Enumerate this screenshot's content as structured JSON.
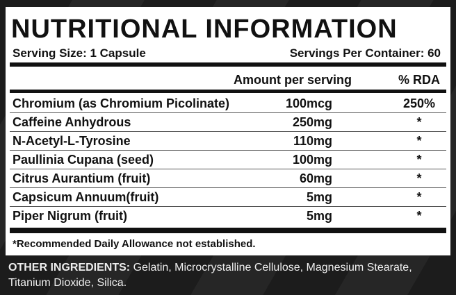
{
  "title": "NUTRITIONAL INFORMATION",
  "serving_size": "Serving Size: 1 Capsule",
  "servings_per_container": "Servings Per Container: 60",
  "table": {
    "headers": [
      "Amount per serving",
      "% RDA"
    ],
    "rows": [
      [
        "Chromium (as Chromium Picolinate)",
        "100mcg",
        "250%"
      ],
      [
        "Caffeine Anhydrous",
        "250mg",
        "*"
      ],
      [
        "N-Acetyl-L-Tyrosine",
        "110mg",
        "*"
      ],
      [
        "Paullinia Cupana (seed)",
        "100mg",
        "*"
      ],
      [
        "Citrus Aurantium (fruit)",
        "60mg",
        "*"
      ],
      [
        "Capsicum Annuum(fruit)",
        "5mg",
        "*"
      ],
      [
        "Piper Nigrum (fruit)",
        "5mg",
        "*"
      ]
    ]
  },
  "footnote": "*Recommended Daily Allowance not established.",
  "other_ingredients": {
    "label": "OTHER INGREDIENTS:",
    "text": "Gelatin, Microcrystalline Cellulose, Magnesium Stearate, Titanium Dioxide, Silica."
  }
}
